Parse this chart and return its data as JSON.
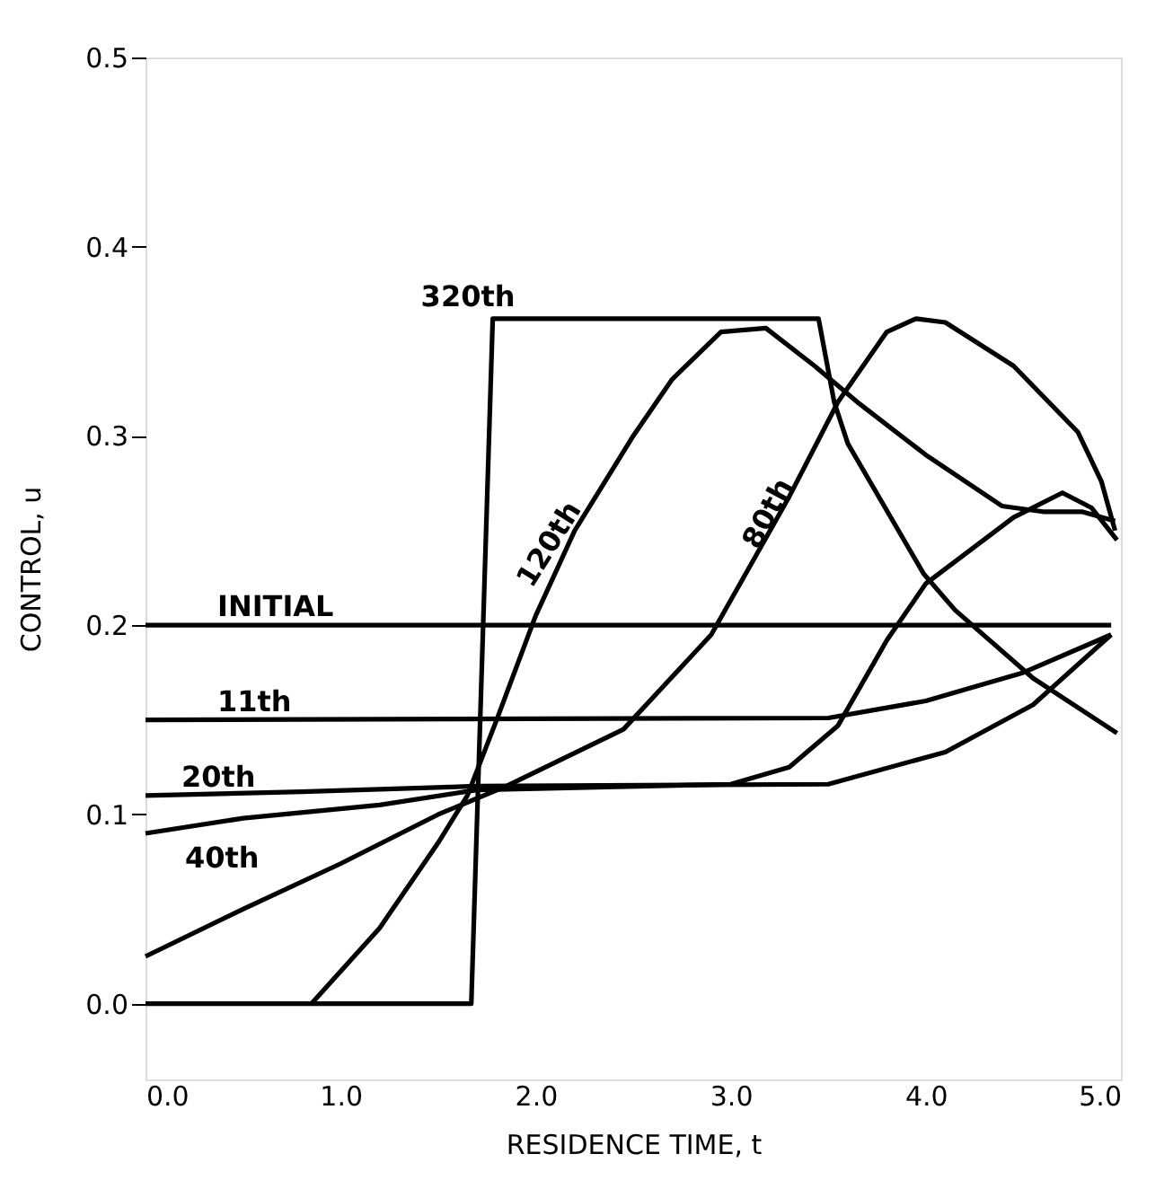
{
  "chart_data": {
    "type": "line",
    "xlabel": "RESIDENCE TIME, t",
    "ylabel": "CONTROL, u",
    "xlim": [
      0,
      5
    ],
    "ylim": [
      -0.04,
      0.5
    ],
    "xticks": [
      {
        "value": 0,
        "label": "0.0"
      },
      {
        "value": 1,
        "label": "1.0"
      },
      {
        "value": 2,
        "label": "2.0"
      },
      {
        "value": 3,
        "label": "3.0"
      },
      {
        "value": 4,
        "label": "4.0"
      },
      {
        "value": 5,
        "label": "5.0"
      }
    ],
    "yticks": [
      {
        "value": 0,
        "label": "0.0"
      },
      0.1,
      0.2,
      0.3,
      0.4,
      0.5
    ],
    "grid": false,
    "marker": "none",
    "line_style": "solid",
    "series": [
      {
        "name": "INITIAL",
        "color": "#000000",
        "x": [
          0,
          4.95
        ],
        "values": [
          0.2,
          0.2
        ]
      },
      {
        "name": "11th",
        "color": "#000000",
        "x": [
          0,
          3.5,
          4.0,
          4.5,
          4.95
        ],
        "values": [
          0.15,
          0.151,
          0.16,
          0.175,
          0.195
        ]
      },
      {
        "name": "20th",
        "color": "#000000",
        "x": [
          0,
          0.8,
          1.7,
          3.5,
          4.1,
          4.55,
          4.95
        ],
        "values": [
          0.11,
          0.112,
          0.115,
          0.116,
          0.133,
          0.158,
          0.195
        ]
      },
      {
        "name": "40th",
        "color": "#000000",
        "x": [
          0,
          0.5,
          1.2,
          1.7,
          3.0,
          3.3,
          3.55,
          3.8,
          4.0,
          4.45,
          4.7,
          4.85,
          4.98
        ],
        "values": [
          0.09,
          0.098,
          0.105,
          0.113,
          0.116,
          0.125,
          0.147,
          0.192,
          0.222,
          0.257,
          0.27,
          0.262,
          0.245
        ]
      },
      {
        "name": "80th",
        "color": "#000000",
        "x": [
          0,
          0.5,
          1.0,
          1.5,
          1.85,
          2.45,
          2.9,
          3.3,
          3.55,
          3.8,
          3.95,
          4.1,
          4.45,
          4.78,
          4.9,
          4.97
        ],
        "values": [
          0.025,
          0.05,
          0.074,
          0.1,
          0.115,
          0.145,
          0.195,
          0.268,
          0.318,
          0.355,
          0.362,
          0.36,
          0.337,
          0.302,
          0.276,
          0.25
        ]
      },
      {
        "name": "120th",
        "color": "#000000",
        "x": [
          0.85,
          1.2,
          1.5,
          1.65,
          1.8,
          2.0,
          2.2,
          2.5,
          2.7,
          2.95,
          3.18,
          3.43,
          3.66,
          4.0,
          4.39,
          4.6,
          4.8,
          4.97
        ],
        "values": [
          0,
          0.04,
          0.085,
          0.11,
          0.15,
          0.205,
          0.25,
          0.3,
          0.33,
          0.355,
          0.357,
          0.337,
          0.317,
          0.29,
          0.263,
          0.26,
          0.26,
          0.255
        ]
      },
      {
        "name": "320th",
        "color": "#000000",
        "x": [
          0,
          1.67,
          1.78,
          3.45,
          3.53,
          3.6,
          3.99,
          4.15,
          4.55,
          4.98
        ],
        "values": [
          0,
          0,
          0.362,
          0.362,
          0.318,
          0.296,
          0.227,
          0.208,
          0.172,
          0.143
        ]
      }
    ]
  }
}
